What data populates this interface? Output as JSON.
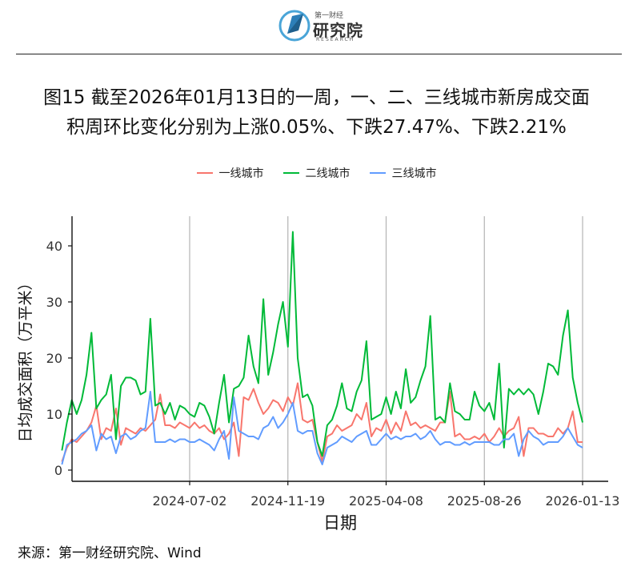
{
  "header": {
    "logo_brand": "第一财经",
    "logo_name": "研究院",
    "logo_sub": "RESEARCH"
  },
  "title": {
    "line1": "图15  截至2026年01月13日的一周，一、二、三线城市新房成交面",
    "line2": "积周环比变化分别为上涨0.05%、下跌27.47%、下跌2.21%"
  },
  "source": "来源：第一财经研究院、Wind",
  "colors": {
    "tier1": "#F8766D",
    "tier2": "#00BA38",
    "tier3": "#619CFF",
    "grid": "#b3b3b3"
  },
  "chart_data": {
    "type": "line",
    "xlabel": "日期",
    "ylabel": "日均成交面积（万平米）",
    "ylim": [
      0,
      45
    ],
    "yticks": [
      0,
      10,
      20,
      30,
      40
    ],
    "xticks": [
      "2024-07-02",
      "2024-11-19",
      "2025-04-08",
      "2025-08-26",
      "2026-01-13"
    ],
    "xlim": [
      "2024-01-02",
      "2026-01-13"
    ],
    "grid": "vertical lines at x ticks",
    "legend_position": "top",
    "x": [
      "2024-01-02",
      "2024-01-09",
      "2024-01-16",
      "2024-01-23",
      "2024-01-30",
      "2024-02-06",
      "2024-02-13",
      "2024-02-20",
      "2024-02-27",
      "2024-03-05",
      "2024-03-12",
      "2024-03-19",
      "2024-03-26",
      "2024-04-02",
      "2024-04-09",
      "2024-04-16",
      "2024-04-23",
      "2024-04-30",
      "2024-05-07",
      "2024-05-14",
      "2024-05-21",
      "2024-05-28",
      "2024-06-04",
      "2024-06-11",
      "2024-06-18",
      "2024-06-25",
      "2024-07-02",
      "2024-07-09",
      "2024-07-16",
      "2024-07-23",
      "2024-07-30",
      "2024-08-06",
      "2024-08-13",
      "2024-08-20",
      "2024-08-27",
      "2024-09-03",
      "2024-09-10",
      "2024-09-17",
      "2024-09-24",
      "2024-10-01",
      "2024-10-08",
      "2024-10-15",
      "2024-10-22",
      "2024-10-29",
      "2024-11-05",
      "2024-11-12",
      "2024-11-19",
      "2024-11-26",
      "2024-12-03",
      "2024-12-10",
      "2024-12-17",
      "2024-12-24",
      "2024-12-31",
      "2025-01-07",
      "2025-01-14",
      "2025-01-21",
      "2025-01-28",
      "2025-02-04",
      "2025-02-11",
      "2025-02-18",
      "2025-02-25",
      "2025-03-04",
      "2025-03-11",
      "2025-03-18",
      "2025-03-25",
      "2025-04-01",
      "2025-04-08",
      "2025-04-15",
      "2025-04-22",
      "2025-04-29",
      "2025-05-06",
      "2025-05-13",
      "2025-05-20",
      "2025-05-27",
      "2025-06-03",
      "2025-06-10",
      "2025-06-17",
      "2025-06-24",
      "2025-07-01",
      "2025-07-08",
      "2025-07-15",
      "2025-07-22",
      "2025-07-29",
      "2025-08-05",
      "2025-08-12",
      "2025-08-19",
      "2025-08-26",
      "2025-09-02",
      "2025-09-09",
      "2025-09-16",
      "2025-09-23",
      "2025-09-30",
      "2025-10-07",
      "2025-10-14",
      "2025-10-21",
      "2025-10-28",
      "2025-11-04",
      "2025-11-11",
      "2025-11-18",
      "2025-11-25",
      "2025-12-02",
      "2025-12-09",
      "2025-12-16",
      "2025-12-23",
      "2025-12-30",
      "2026-01-06",
      "2026-01-13"
    ],
    "series": [
      {
        "name": "一线城市",
        "color": "#F8766D",
        "values": [
          1.5,
          4.0,
          5.5,
          5.0,
          6.0,
          7.0,
          8.5,
          11.5,
          5.5,
          7.5,
          7.0,
          11.0,
          4.5,
          7.5,
          7.0,
          6.5,
          7.5,
          7.0,
          8.0,
          9.0,
          13.5,
          8.0,
          8.0,
          7.5,
          8.5,
          8.0,
          7.5,
          8.5,
          7.5,
          8.0,
          7.0,
          6.5,
          7.5,
          5.5,
          6.5,
          8.5,
          2.5,
          13.0,
          12.5,
          14.5,
          12.0,
          10.0,
          11.0,
          12.5,
          12.0,
          10.5,
          13.0,
          11.5,
          15.5,
          9.0,
          8.5,
          9.0,
          5.0,
          1.5,
          6.0,
          6.5,
          8.0,
          7.0,
          7.5,
          8.0,
          10.0,
          9.0,
          12.0,
          6.0,
          7.5,
          7.0,
          9.0,
          6.5,
          8.5,
          7.0,
          10.5,
          8.0,
          8.5,
          7.5,
          8.0,
          7.5,
          7.0,
          8.5,
          8.5,
          14.0,
          6.0,
          6.5,
          5.5,
          5.5,
          6.0,
          5.5,
          6.5,
          5.0,
          6.0,
          7.5,
          6.0,
          7.0,
          7.5,
          9.5,
          2.5,
          7.5,
          7.5,
          6.5,
          6.5,
          6.0,
          6.0,
          7.5,
          6.5,
          7.5,
          10.5,
          5.0,
          5.0
        ]
      },
      {
        "name": "二线城市",
        "color": "#00BA38",
        "values": [
          3.5,
          8.5,
          12.5,
          10.0,
          12.5,
          17.0,
          24.5,
          11.0,
          12.5,
          13.5,
          17.0,
          5.5,
          15.0,
          16.5,
          16.5,
          16.0,
          13.5,
          14.0,
          27.0,
          11.5,
          12.0,
          10.0,
          12.0,
          9.0,
          11.5,
          11.0,
          10.0,
          9.5,
          12.0,
          11.5,
          9.5,
          6.5,
          12.0,
          17.0,
          8.5,
          14.5,
          15.0,
          16.5,
          24.0,
          18.5,
          15.5,
          30.5,
          17.0,
          21.0,
          26.0,
          30.0,
          22.0,
          42.5,
          20.0,
          13.0,
          13.5,
          11.5,
          5.0,
          2.5,
          8.0,
          9.0,
          11.5,
          15.5,
          11.0,
          10.5,
          14.0,
          16.0,
          23.0,
          9.0,
          9.5,
          10.0,
          13.0,
          10.0,
          14.0,
          11.0,
          18.0,
          12.0,
          13.0,
          16.0,
          18.5,
          27.5,
          9.0,
          9.5,
          8.5,
          15.5,
          10.5,
          10.0,
          9.0,
          9.0,
          14.0,
          11.5,
          10.5,
          12.0,
          9.0,
          19.0,
          4.0,
          14.5,
          13.5,
          14.5,
          13.5,
          14.5,
          13.5,
          10.0,
          14.0,
          19.0,
          18.5,
          17.0,
          24.0,
          28.5,
          16.5,
          12.0,
          8.5
        ]
      },
      {
        "name": "三线城市",
        "color": "#619CFF",
        "values": [
          1.0,
          4.5,
          5.0,
          5.5,
          6.5,
          7.0,
          8.0,
          3.5,
          6.5,
          5.5,
          6.0,
          3.0,
          6.0,
          6.5,
          5.5,
          6.0,
          7.0,
          7.5,
          14.0,
          5.0,
          5.0,
          5.0,
          5.5,
          5.0,
          5.5,
          5.5,
          5.0,
          5.0,
          5.5,
          5.0,
          4.5,
          3.5,
          5.5,
          7.0,
          2.0,
          13.0,
          7.0,
          6.5,
          6.0,
          6.0,
          5.5,
          7.5,
          8.0,
          9.5,
          7.5,
          8.5,
          10.0,
          12.0,
          7.0,
          6.5,
          7.0,
          7.0,
          3.0,
          1.0,
          4.0,
          4.5,
          5.0,
          6.0,
          5.5,
          5.0,
          6.0,
          6.5,
          7.0,
          4.5,
          4.5,
          5.5,
          6.5,
          5.5,
          6.0,
          5.5,
          6.0,
          6.0,
          6.5,
          5.5,
          6.0,
          7.0,
          5.5,
          4.5,
          5.0,
          5.0,
          4.5,
          4.5,
          5.0,
          4.5,
          5.0,
          5.0,
          5.0,
          5.0,
          4.5,
          4.5,
          5.5,
          5.5,
          6.5,
          2.5,
          5.5,
          7.0,
          6.0,
          5.5,
          4.5,
          5.0,
          5.0,
          5.0,
          6.0,
          7.5,
          6.0,
          4.5,
          4.0
        ]
      }
    ]
  }
}
